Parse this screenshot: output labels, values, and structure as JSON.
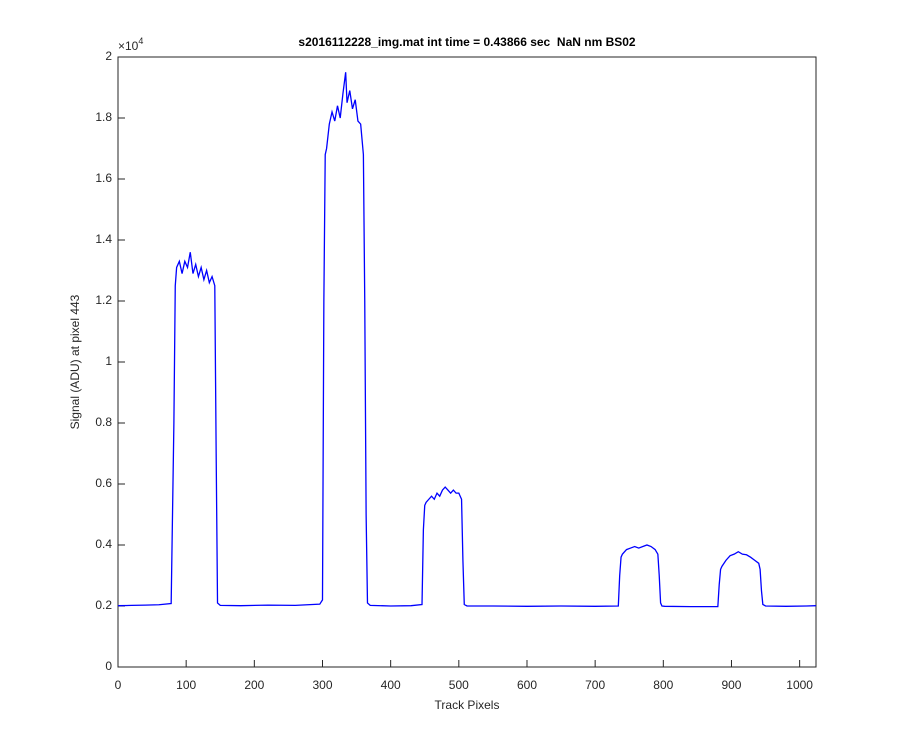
{
  "chart_data": {
    "type": "line",
    "title": "s2016112228_img.mat int time = 0.43866 sec  NaN nm BS02",
    "xlabel": "Track Pixels",
    "ylabel": "Signal (ADU) at pixel 443",
    "y_multiplier": {
      "base": "×10",
      "exponent": "4"
    },
    "xlim": [
      0,
      1024
    ],
    "ylim": [
      0,
      20000
    ],
    "xticks": [
      0,
      100,
      200,
      300,
      400,
      500,
      600,
      700,
      800,
      900,
      1000
    ],
    "yticks": [
      0,
      {
        "value": 2000,
        "label": "0.2"
      },
      {
        "value": 4000,
        "label": "0.4"
      },
      {
        "value": 6000,
        "label": "0.6"
      },
      {
        "value": 8000,
        "label": "0.8"
      },
      {
        "value": 10000,
        "label": "1"
      },
      {
        "value": 12000,
        "label": "1.2"
      },
      {
        "value": 14000,
        "label": "1.4"
      },
      {
        "value": 16000,
        "label": "1.6"
      },
      {
        "value": 18000,
        "label": "1.8"
      },
      {
        "value": 20000,
        "label": "2"
      }
    ],
    "grid": false,
    "x": [
      0,
      20,
      40,
      60,
      78,
      82,
      84,
      86,
      90,
      94,
      98,
      102,
      106,
      110,
      114,
      118,
      122,
      126,
      130,
      134,
      138,
      142,
      144,
      146,
      150,
      180,
      220,
      260,
      296,
      300,
      302,
      304,
      306,
      310,
      314,
      318,
      322,
      326,
      330,
      334,
      336,
      340,
      344,
      348,
      352,
      356,
      360,
      362,
      364,
      366,
      370,
      400,
      430,
      446,
      448,
      450,
      452,
      456,
      460,
      464,
      468,
      472,
      476,
      480,
      484,
      488,
      492,
      496,
      500,
      504,
      506,
      508,
      512,
      550,
      600,
      650,
      700,
      734,
      736,
      738,
      740,
      746,
      752,
      758,
      764,
      770,
      776,
      782,
      788,
      792,
      794,
      796,
      798,
      802,
      840,
      880,
      882,
      884,
      886,
      892,
      898,
      904,
      910,
      916,
      922,
      928,
      934,
      940,
      942,
      944,
      946,
      950,
      980,
      1010,
      1024
    ],
    "series": [
      {
        "name": "Signal",
        "color": "#0000ff",
        "values": [
          2010,
          2020,
          2030,
          2040,
          2080,
          8000,
          12500,
          13100,
          13300,
          12900,
          13300,
          13100,
          13600,
          12900,
          13200,
          12800,
          13100,
          12700,
          13000,
          12600,
          12800,
          12500,
          7000,
          2100,
          2020,
          2010,
          2030,
          2020,
          2060,
          2200,
          12000,
          16800,
          17000,
          17800,
          18200,
          17900,
          18400,
          18000,
          18800,
          19500,
          18500,
          18900,
          18300,
          18600,
          17900,
          17800,
          16800,
          12000,
          5000,
          2100,
          2020,
          2000,
          2010,
          2050,
          4500,
          5300,
          5400,
          5500,
          5600,
          5500,
          5700,
          5600,
          5800,
          5900,
          5800,
          5700,
          5800,
          5700,
          5700,
          5500,
          3500,
          2050,
          2000,
          2000,
          1990,
          2000,
          1990,
          2000,
          3000,
          3600,
          3700,
          3850,
          3900,
          3950,
          3900,
          3950,
          4000,
          3950,
          3850,
          3700,
          3000,
          2100,
          2000,
          1990,
          1980,
          1980,
          2700,
          3200,
          3300,
          3500,
          3650,
          3700,
          3780,
          3700,
          3680,
          3600,
          3500,
          3400,
          3200,
          2500,
          2050,
          2000,
          1990,
          2000,
          2010
        ]
      }
    ]
  }
}
